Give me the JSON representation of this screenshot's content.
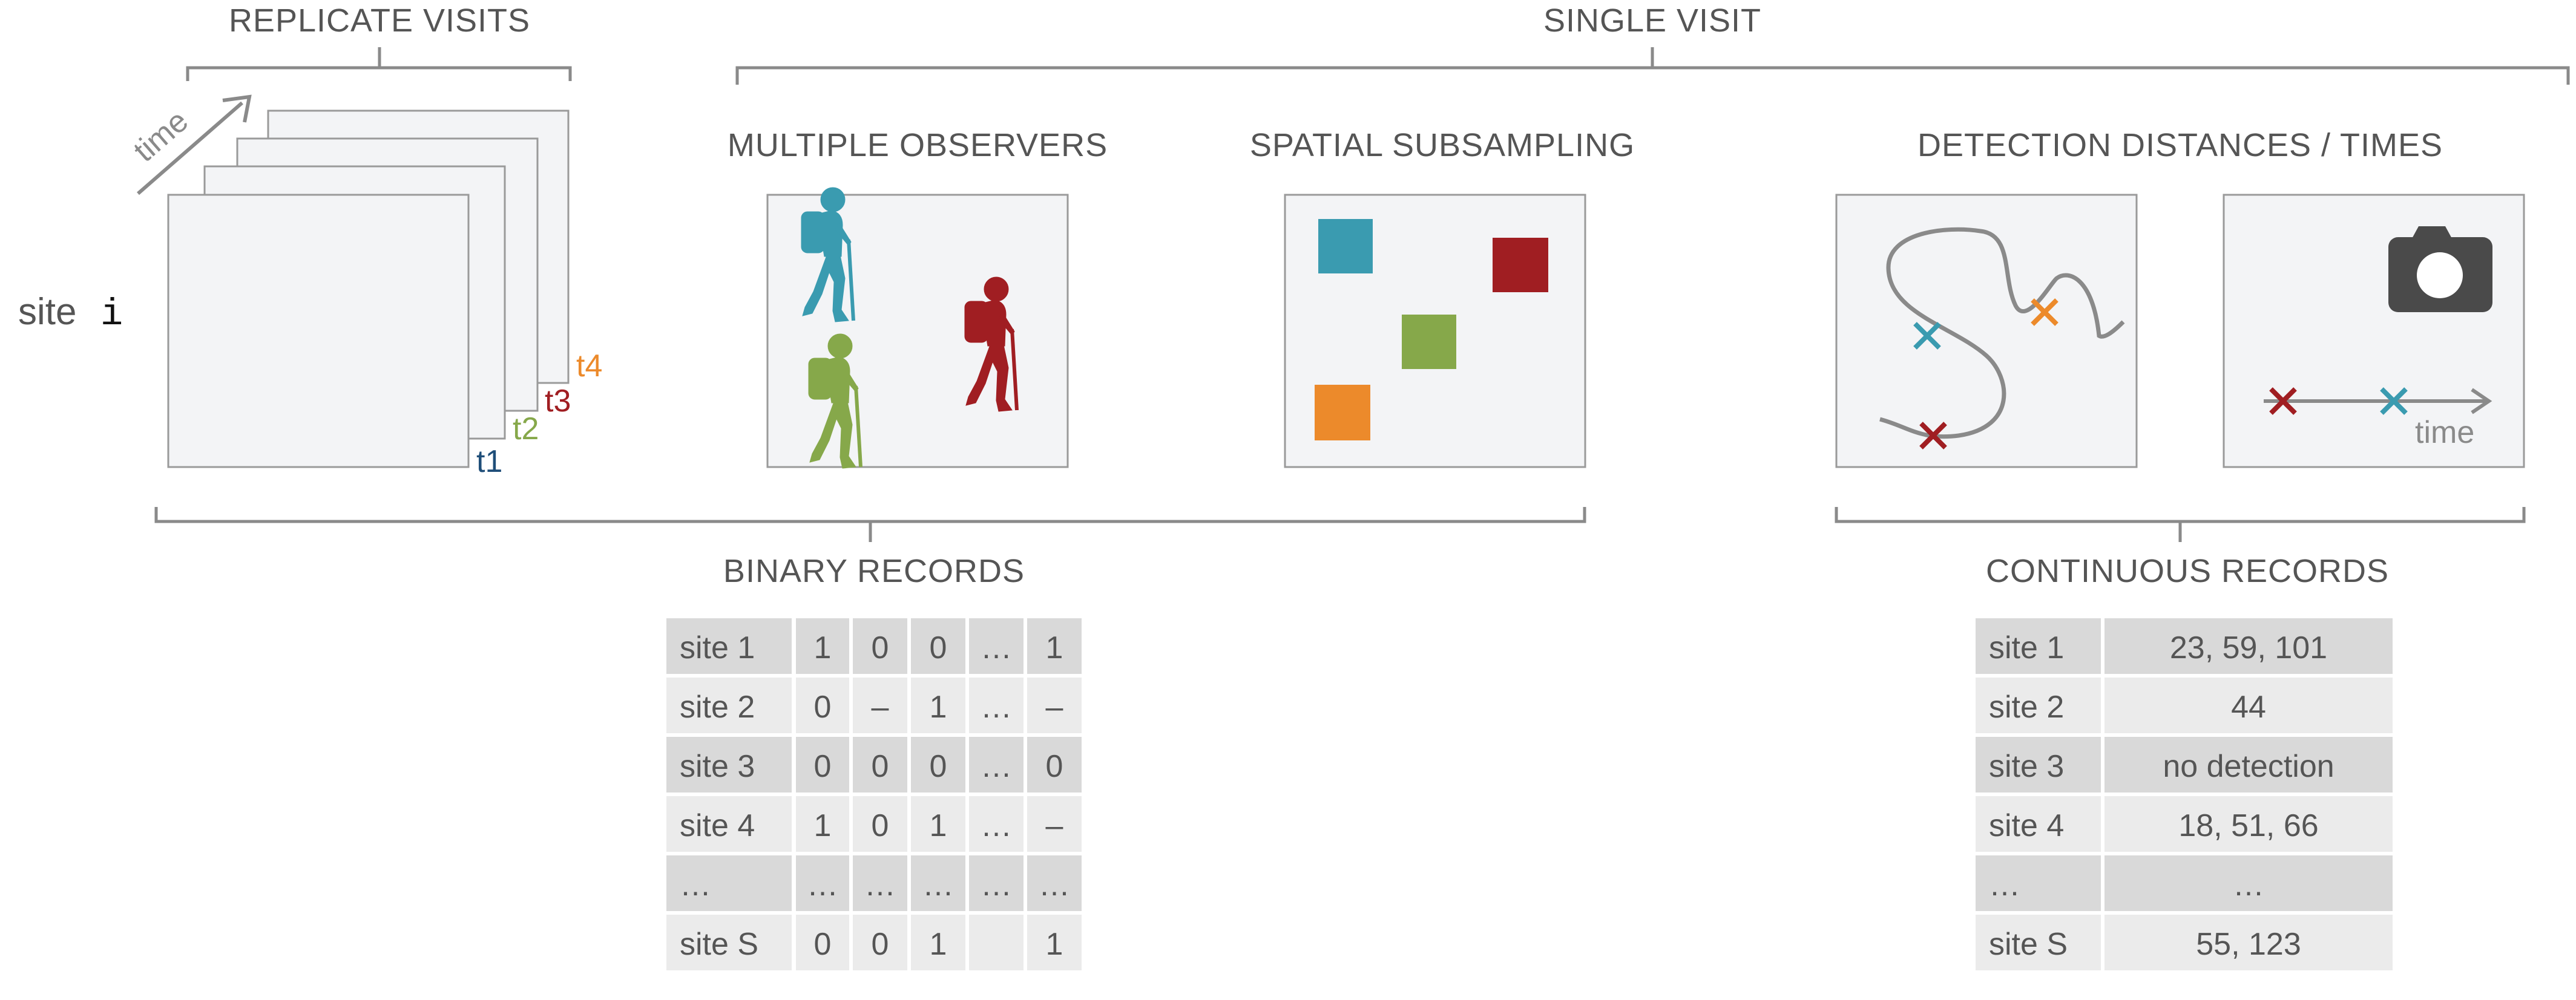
{
  "colors": {
    "blue": "#3a9bb0",
    "green": "#86a84a",
    "red": "#a01e22",
    "orange": "#ec8a2b",
    "gray": "#8a8a8a",
    "text": "#555555",
    "cell_dark": "#d9d9d9",
    "cell_light": "#ebebeb",
    "panel_fill": "#f3f4f6"
  },
  "headers": {
    "replicate_visits": "REPLICATE VISITS",
    "single_visit": "SINGLE VISIT",
    "multiple_observers": "MULTIPLE OBSERVERS",
    "spatial_subsampling": "SPATIAL SUBSAMPLING",
    "detection": "DETECTION DISTANCES / TIMES",
    "binary_records": "BINARY RECORDS",
    "continuous_records": "CONTINUOUS RECORDS"
  },
  "site": {
    "word": "site",
    "index": "i"
  },
  "time_arrow_label": "time",
  "stack_labels": [
    "t1",
    "t2",
    "t3",
    "t4"
  ],
  "timeline_label": "time",
  "icons": {
    "hikers": [
      "hiker-icon-blue",
      "hiker-icon-green",
      "hiker-icon-red"
    ],
    "camera": "camera-icon"
  },
  "binary_table": {
    "rows": [
      [
        "site 1",
        "1",
        "0",
        "0",
        "…",
        "1"
      ],
      [
        "site 2",
        "0",
        "–",
        "1",
        "…",
        "–"
      ],
      [
        "site 3",
        "0",
        "0",
        "0",
        "…",
        "0"
      ],
      [
        "site 4",
        "1",
        "0",
        "1",
        "…",
        "–"
      ],
      [
        "…",
        "…",
        "…",
        "…",
        "…",
        "…"
      ],
      [
        "site S",
        "0",
        "0",
        "1",
        "",
        "1"
      ]
    ]
  },
  "continuous_table": {
    "rows": [
      [
        "site 1",
        "23, 59, 101"
      ],
      [
        "site 2",
        "44"
      ],
      [
        "site 3",
        "no detection"
      ],
      [
        "site 4",
        "18,  51, 66"
      ],
      [
        "…",
        "…"
      ],
      [
        "site S",
        "55, 123"
      ]
    ]
  }
}
